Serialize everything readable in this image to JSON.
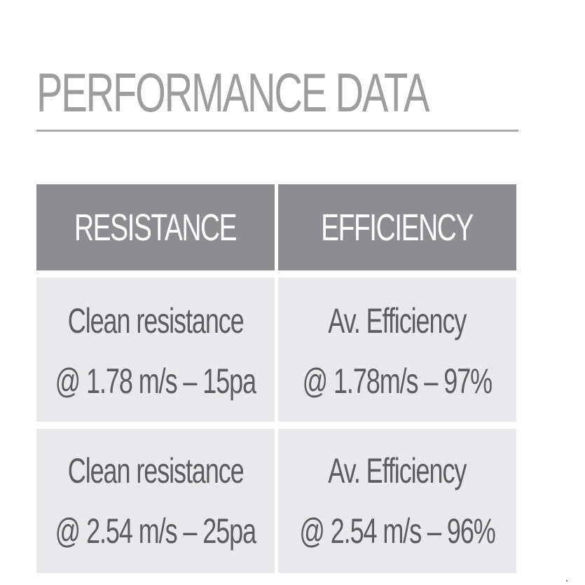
{
  "title": "PERFORMANCE DATA",
  "table": {
    "headers": [
      "RESISTANCE",
      "EFFICIENCY"
    ],
    "rows": [
      {
        "resistance": [
          "Clean resistance",
          "@ 1.78 m/s – 15pa"
        ],
        "efficiency": [
          "Av. Efficiency",
          "@ 1.78m/s – 97%"
        ]
      },
      {
        "resistance": [
          "Clean resistance",
          "@ 2.54 m/s – 25pa"
        ],
        "efficiency": [
          "Av. Efficiency",
          "@ 2.54 m/s – 96%"
        ]
      }
    ]
  },
  "colors": {
    "title": "#9d9d9f",
    "rule": "#a9a9ab",
    "header_bg": "#8d8c90",
    "header_text": "#ffffff",
    "cell_bg": "#e9e9eb",
    "cell_text": "#5d5d60"
  }
}
